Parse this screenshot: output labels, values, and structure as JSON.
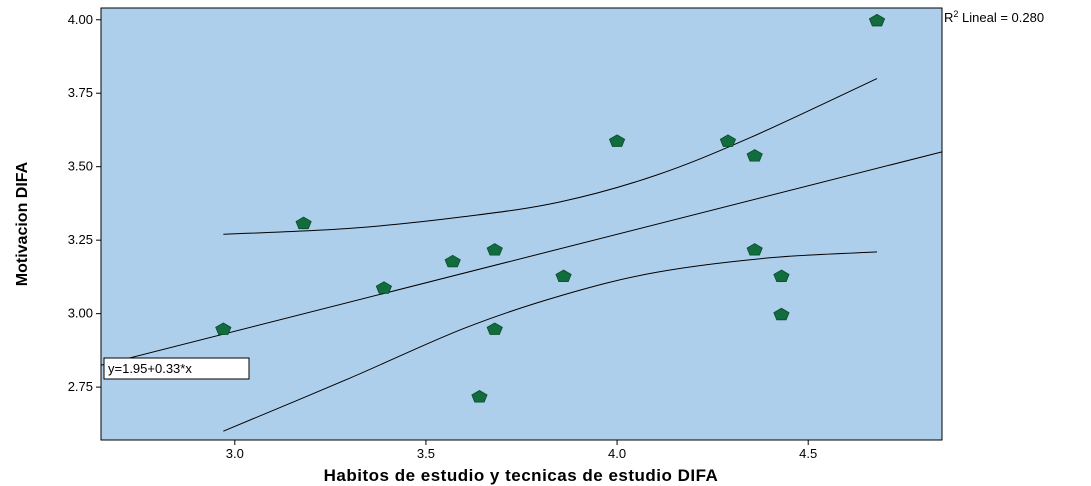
{
  "chart_data": {
    "type": "scatter",
    "title": "",
    "xlabel": "Habitos de estudio y tecnicas de estudio DIFA",
    "ylabel": "Motivacion DIFA",
    "xlim": [
      2.65,
      4.85
    ],
    "ylim": [
      2.57,
      4.04
    ],
    "x_ticks": [
      3.0,
      3.5,
      4.0,
      4.5
    ],
    "x_tick_labels": [
      "3.0",
      "3.5",
      "4.0",
      "4.5"
    ],
    "y_ticks": [
      2.75,
      3.0,
      3.25,
      3.5,
      3.75,
      4.0
    ],
    "y_tick_labels": [
      "2.75",
      "3.00",
      "3.25",
      "3.50",
      "3.75",
      "4.00"
    ],
    "grid": false,
    "background_color": "#aecfec",
    "marker_color": "#116c3e",
    "points": [
      {
        "x": 2.97,
        "y": 2.95
      },
      {
        "x": 3.18,
        "y": 3.31
      },
      {
        "x": 3.39,
        "y": 3.09
      },
      {
        "x": 3.57,
        "y": 3.18
      },
      {
        "x": 3.64,
        "y": 2.72
      },
      {
        "x": 3.68,
        "y": 3.22
      },
      {
        "x": 3.68,
        "y": 2.95
      },
      {
        "x": 3.86,
        "y": 3.13
      },
      {
        "x": 4.0,
        "y": 3.59
      },
      {
        "x": 4.29,
        "y": 3.59
      },
      {
        "x": 4.36,
        "y": 3.54
      },
      {
        "x": 4.36,
        "y": 3.22
      },
      {
        "x": 4.43,
        "y": 3.13
      },
      {
        "x": 4.43,
        "y": 3.0
      },
      {
        "x": 4.68,
        "y": 4.0
      }
    ],
    "fit_line": {
      "intercept": 1.95,
      "slope": 0.33
    },
    "confidence_upper": [
      {
        "x": 2.97,
        "y": 3.27
      },
      {
        "x": 3.3,
        "y": 3.29
      },
      {
        "x": 3.6,
        "y": 3.33
      },
      {
        "x": 3.85,
        "y": 3.38
      },
      {
        "x": 4.1,
        "y": 3.47
      },
      {
        "x": 4.35,
        "y": 3.6
      },
      {
        "x": 4.68,
        "y": 3.8
      }
    ],
    "confidence_lower": [
      {
        "x": 2.97,
        "y": 2.6
      },
      {
        "x": 3.3,
        "y": 2.78
      },
      {
        "x": 3.6,
        "y": 2.95
      },
      {
        "x": 3.85,
        "y": 3.06
      },
      {
        "x": 4.1,
        "y": 3.14
      },
      {
        "x": 4.4,
        "y": 3.19
      },
      {
        "x": 4.68,
        "y": 3.21
      }
    ],
    "annotations": {
      "equation": "y=1.95+0.33*x",
      "r2_prefix": "R",
      "r2_sup": "2",
      "r2_suffix": " Lineal = 0.280"
    }
  }
}
